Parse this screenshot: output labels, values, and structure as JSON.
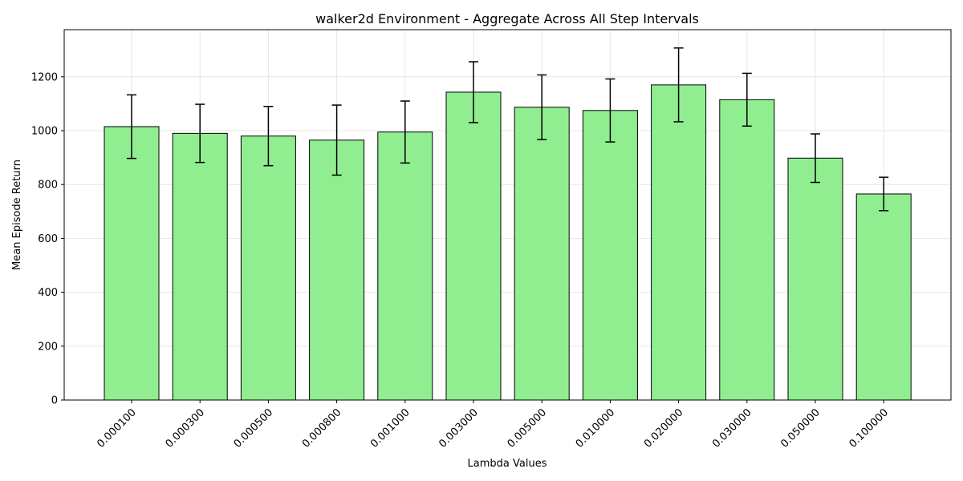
{
  "chart_data": {
    "type": "bar",
    "title": "walker2d Environment - Aggregate Across All Step Intervals",
    "xlabel": "Lambda Values",
    "ylabel": "Mean Episode Return",
    "categories": [
      "0.000100",
      "0.000300",
      "0.000500",
      "0.000800",
      "0.001000",
      "0.003000",
      "0.005000",
      "0.010000",
      "0.020000",
      "0.030000",
      "0.050000",
      "0.100000"
    ],
    "values": [
      1015,
      990,
      980,
      965,
      995,
      1143,
      1087,
      1075,
      1170,
      1115,
      898,
      765
    ],
    "errors": [
      118,
      108,
      110,
      130,
      115,
      113,
      120,
      117,
      137,
      98,
      90,
      62
    ],
    "ylim": [
      0,
      1375
    ],
    "yticks": [
      0,
      200,
      400,
      600,
      800,
      1000,
      1200
    ],
    "grid": true,
    "colors": {
      "bar_fill": "#90ee90",
      "bar_edge": "#000000",
      "grid": "#e6e6e6"
    }
  }
}
